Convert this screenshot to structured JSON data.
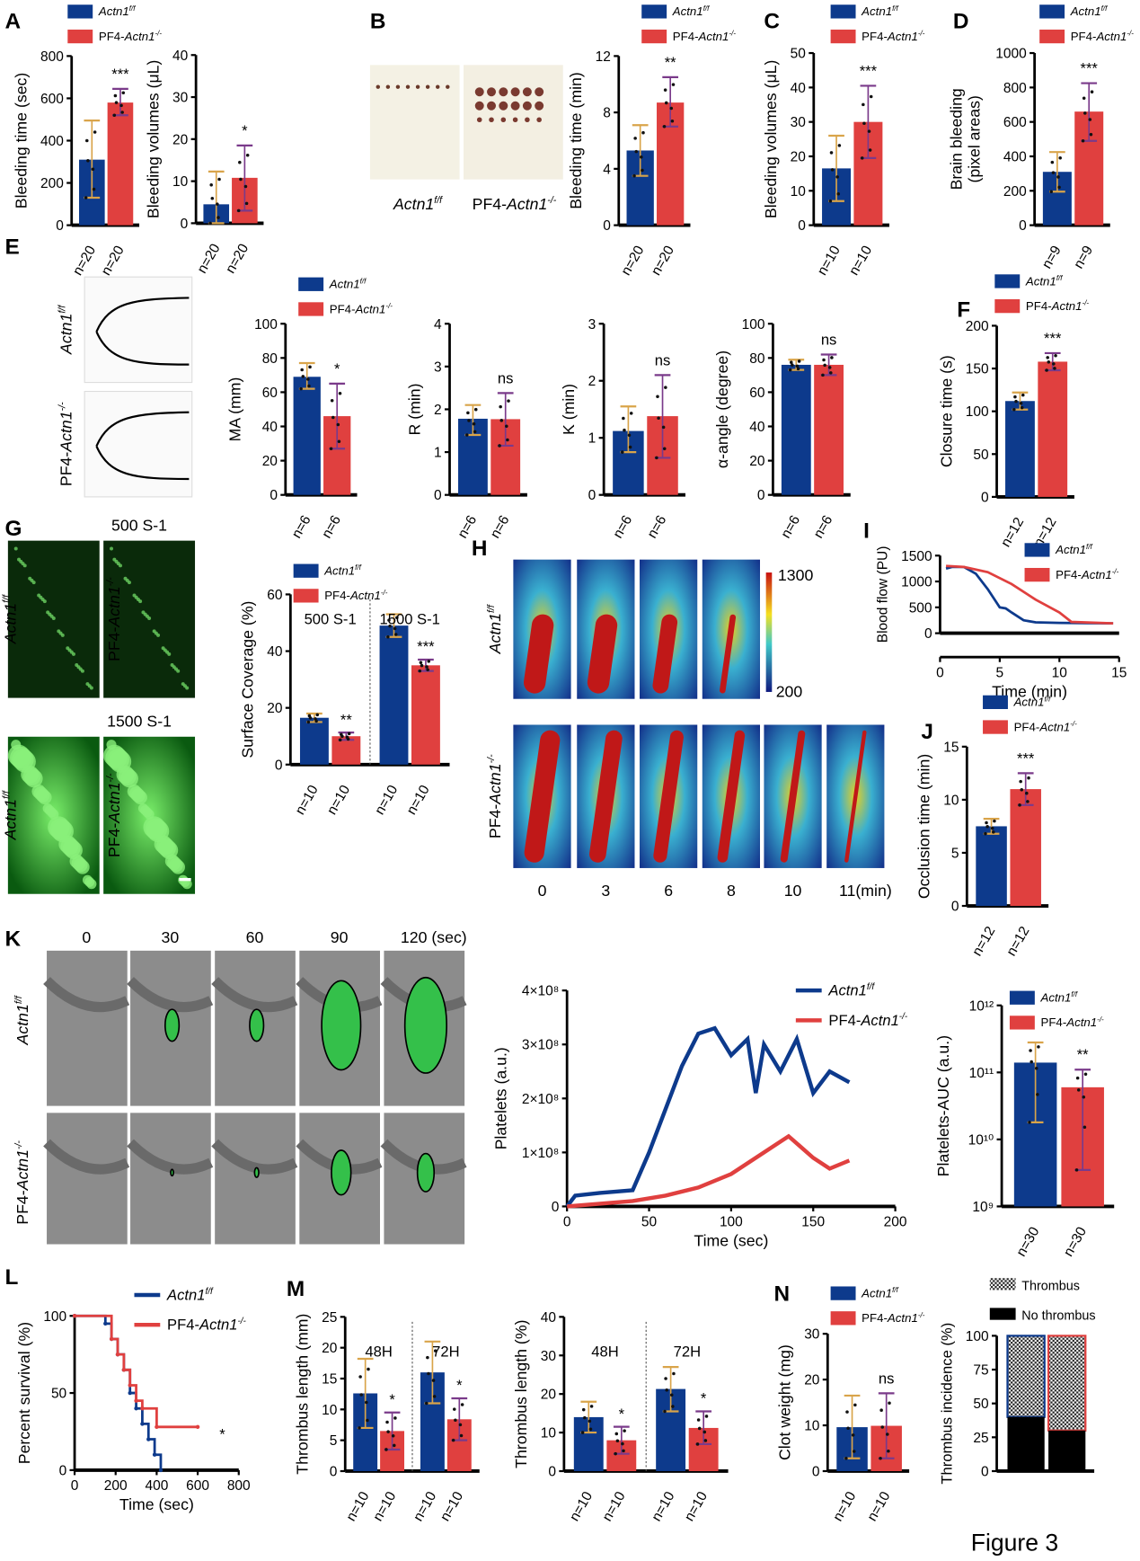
{
  "colors": {
    "actn": "#0d3a8c",
    "pf4": "#e0403f",
    "err_actn": "#d9a44a",
    "err_pf4": "#7a3a8a"
  },
  "legend": {
    "actn": {
      "base": "Actn1",
      "sup": "f/f"
    },
    "pf4": {
      "pre": "PF4-",
      "base": "Actn1",
      "sup": "-/-"
    }
  },
  "panel_letters": [
    "A",
    "B",
    "C",
    "D",
    "E",
    "F",
    "G",
    "H",
    "I",
    "J",
    "K",
    "L",
    "M",
    "N"
  ],
  "images": {
    "B_labels": [
      "Actn1f/f",
      "PF4-Actn1-/-"
    ],
    "E_rows": [
      "Actn1f/f",
      "PF4-Actn1-/-"
    ],
    "G_shear": [
      "500 S-1",
      "1500 S-1"
    ],
    "G_cols": [
      "Actn1f/f",
      "PF4-Actn1-/-"
    ],
    "H_rows": [
      "Actn1f/f",
      "PF4-Actn1-/-"
    ],
    "H_times": [
      "0",
      "3",
      "6",
      "8",
      "10",
      "11(min)"
    ],
    "H_colorbar": [
      "1300",
      "200"
    ],
    "K_rows": [
      "Actn1f/f",
      "PF4-Actn1-/-"
    ],
    "K_times": [
      "0",
      "30",
      "60",
      "90",
      "120 (sec)"
    ]
  },
  "figure_label": "Figure 3",
  "chart_data": [
    {
      "id": "A1",
      "type": "bar",
      "ylabel": "Bleeding time (sec)",
      "ylim": [
        0,
        800
      ],
      "yticks": [
        0,
        200,
        400,
        600,
        800
      ],
      "sig": "***",
      "bars": [
        {
          "s": "actn",
          "value": 310,
          "err": [
            130,
            495
          ],
          "n": "n=20"
        },
        {
          "s": "pf4",
          "value": 580,
          "err": [
            520,
            645
          ],
          "n": "n=20"
        }
      ]
    },
    {
      "id": "A2",
      "type": "bar",
      "ylabel": "Bleeding volumes (μL)",
      "ylim": [
        0,
        40
      ],
      "yticks": [
        0,
        10,
        20,
        30,
        40
      ],
      "sig": "*",
      "bars": [
        {
          "s": "actn",
          "value": 4.5,
          "err": [
            0,
            12.3
          ],
          "n": "n=20"
        },
        {
          "s": "pf4",
          "value": 10.8,
          "err": [
            3,
            18.5
          ],
          "n": "n=20"
        }
      ]
    },
    {
      "id": "B",
      "type": "bar",
      "ylabel": "Bleeding time (min)",
      "ylim": [
        0,
        12
      ],
      "yticks": [
        0,
        4,
        8,
        12
      ],
      "sig": "**",
      "bars": [
        {
          "s": "actn",
          "value": 5.3,
          "err": [
            3.5,
            7.1
          ],
          "n": "n=20"
        },
        {
          "s": "pf4",
          "value": 8.7,
          "err": [
            7,
            10.5
          ],
          "n": "n=20"
        }
      ]
    },
    {
      "id": "C",
      "type": "bar",
      "ylabel": "Bleeding volumes (μL)",
      "ylim": [
        0,
        50
      ],
      "yticks": [
        0,
        10,
        20,
        30,
        40,
        50
      ],
      "sig": "***",
      "bars": [
        {
          "s": "actn",
          "value": 16.5,
          "err": [
            7,
            26
          ],
          "n": "n=10"
        },
        {
          "s": "pf4",
          "value": 30,
          "err": [
            19.5,
            40.5
          ],
          "n": "n=10"
        }
      ]
    },
    {
      "id": "D",
      "type": "bar",
      "ylabel": "Brain bleeding",
      "ylabel2": "(pixel areas)",
      "ylim": [
        0,
        1000
      ],
      "yticks": [
        0,
        200,
        400,
        600,
        800,
        1000
      ],
      "sig": "***",
      "bars": [
        {
          "s": "actn",
          "value": 310,
          "err": [
            195,
            425
          ],
          "n": "n=9"
        },
        {
          "s": "pf4",
          "value": 660,
          "err": [
            490,
            825
          ],
          "n": "n=9"
        }
      ]
    },
    {
      "id": "E_MA",
      "type": "bar",
      "ylabel": "MA (mm)",
      "ylim": [
        0,
        100
      ],
      "yticks": [
        0,
        20,
        40,
        60,
        80,
        100
      ],
      "sig": "*",
      "bars": [
        {
          "s": "actn",
          "value": 69,
          "err": [
            62,
            77
          ],
          "n": "n=6"
        },
        {
          "s": "pf4",
          "value": 46,
          "err": [
            27,
            65
          ],
          "n": "n=6"
        }
      ]
    },
    {
      "id": "E_R",
      "type": "bar",
      "ylabel": "R (min)",
      "ylim": [
        0,
        4
      ],
      "yticks": [
        0,
        1,
        2,
        3,
        4
      ],
      "sig": "ns",
      "bars": [
        {
          "s": "actn",
          "value": 1.78,
          "err": [
            1.4,
            2.1
          ],
          "n": "n=6"
        },
        {
          "s": "pf4",
          "value": 1.77,
          "err": [
            1.15,
            2.38
          ],
          "n": "n=6"
        }
      ]
    },
    {
      "id": "E_K",
      "type": "bar",
      "ylabel": "K (min)",
      "ylim": [
        0,
        3
      ],
      "yticks": [
        0,
        1,
        2,
        3
      ],
      "sig": "ns",
      "bars": [
        {
          "s": "actn",
          "value": 1.12,
          "err": [
            0.75,
            1.55
          ],
          "n": "n=6"
        },
        {
          "s": "pf4",
          "value": 1.38,
          "err": [
            0.65,
            2.1
          ],
          "n": "n=6"
        }
      ]
    },
    {
      "id": "E_A",
      "type": "bar",
      "ylabel": "α-angle (degree)",
      "ylim": [
        0,
        100
      ],
      "yticks": [
        0,
        20,
        40,
        60,
        80,
        100
      ],
      "sig": "ns",
      "bars": [
        {
          "s": "actn",
          "value": 76,
          "err": [
            73,
            79
          ],
          "n": "n=6"
        },
        {
          "s": "pf4",
          "value": 76,
          "err": [
            70,
            82
          ],
          "n": "n=6"
        }
      ]
    },
    {
      "id": "F",
      "type": "bar",
      "ylabel": "Closure time (s)",
      "ylim": [
        0,
        200
      ],
      "yticks": [
        0,
        50,
        100,
        150,
        200
      ],
      "sig": "***",
      "bars": [
        {
          "s": "actn",
          "value": 112,
          "err": [
            102,
            122
          ],
          "n": "n=12"
        },
        {
          "s": "pf4",
          "value": 158,
          "err": [
            148,
            168
          ],
          "n": "n=12"
        }
      ]
    },
    {
      "id": "G",
      "type": "bar",
      "ylabel": "Surface Coverage (%)",
      "ylim": [
        0,
        60
      ],
      "yticks": [
        0,
        20,
        40,
        60
      ],
      "groups": [
        "500 S-1",
        "1500 S-1"
      ],
      "bars": [
        {
          "s": "actn",
          "g": 0,
          "value": 16.5,
          "err": [
            15,
            18
          ],
          "n": "n=10"
        },
        {
          "s": "pf4",
          "g": 0,
          "value": 10,
          "err": [
            8.7,
            11.3
          ],
          "n": "n=10",
          "sig": "**"
        },
        {
          "s": "actn",
          "g": 1,
          "value": 49,
          "err": [
            45,
            53
          ],
          "n": "n=10"
        },
        {
          "s": "pf4",
          "g": 1,
          "value": 35,
          "err": [
            33,
            37
          ],
          "n": "n=10",
          "sig": "***"
        }
      ]
    },
    {
      "id": "I",
      "type": "line",
      "ylabel": "Blood flow (PU)",
      "xlabel": "Time (min)",
      "xlim": [
        0,
        15
      ],
      "ylim": [
        0,
        1500
      ],
      "xticks": [
        0,
        5,
        10,
        15
      ],
      "yticks": [
        0,
        500,
        1000,
        1500
      ],
      "series": [
        {
          "s": "actn",
          "x": [
            0.5,
            1,
            2,
            3,
            4,
            5,
            5.5,
            6,
            7,
            8,
            10,
            14.5
          ],
          "y": [
            1250,
            1280,
            1280,
            1150,
            850,
            500,
            480,
            400,
            250,
            210,
            200,
            190
          ]
        },
        {
          "s": "pf4",
          "x": [
            0.5,
            2,
            4,
            6,
            8,
            10,
            11,
            14.5
          ],
          "y": [
            1300,
            1280,
            1180,
            950,
            650,
            400,
            220,
            190
          ]
        }
      ]
    },
    {
      "id": "J",
      "type": "bar",
      "ylabel": "Occlusion time (min)",
      "ylim": [
        0,
        15
      ],
      "yticks": [
        0,
        5,
        10,
        15
      ],
      "sig": "***",
      "bars": [
        {
          "s": "actn",
          "value": 7.5,
          "err": [
            6.8,
            8.2
          ],
          "n": "n=12"
        },
        {
          "s": "pf4",
          "value": 11,
          "err": [
            9.5,
            12.5
          ],
          "n": "n=12"
        }
      ]
    },
    {
      "id": "K_line",
      "type": "line",
      "ylabel": "Platelets (a.u.)",
      "xlabel": "Time (sec)",
      "xlim": [
        0,
        200
      ],
      "ylim": [
        0,
        400000000
      ],
      "xticks": [
        0,
        50,
        100,
        150,
        200
      ],
      "yticks": [
        0,
        100000000,
        200000000,
        300000000,
        400000000
      ],
      "ytick_labels": [
        "0",
        "1×10⁸",
        "2×10⁸",
        "3×10⁸",
        "4×10⁸"
      ],
      "series": [
        {
          "s": "actn",
          "x": [
            0,
            5,
            20,
            40,
            50,
            60,
            70,
            80,
            90,
            100,
            110,
            115,
            120,
            130,
            140,
            150,
            160,
            172
          ],
          "y": [
            0,
            20000000,
            25000000,
            30000000,
            100000000,
            180000000,
            260000000,
            320000000,
            330000000,
            280000000,
            310000000,
            210000000,
            300000000,
            250000000,
            310000000,
            210000000,
            250000000,
            230000000
          ]
        },
        {
          "s": "pf4",
          "x": [
            0,
            20,
            40,
            60,
            80,
            100,
            120,
            135,
            150,
            160,
            172
          ],
          "y": [
            0,
            5000000,
            10000000,
            20000000,
            35000000,
            60000000,
            100000000,
            130000000,
            90000000,
            70000000,
            85000000
          ]
        }
      ]
    },
    {
      "id": "K_auc",
      "type": "bar",
      "yscale": "log",
      "ylabel": "Platelets-AUC (a.u.)",
      "ylim": [
        1000000000,
        1000000000000
      ],
      "yticks": [
        1000000000,
        10000000000,
        100000000000,
        1000000000000
      ],
      "ytick_labels": [
        "10⁹",
        "10¹⁰",
        "10¹¹",
        "10¹²"
      ],
      "sig": "**",
      "bars": [
        {
          "s": "actn",
          "value": 140000000000,
          "err": [
            18000000000,
            280000000000
          ],
          "n": "n=30"
        },
        {
          "s": "pf4",
          "value": 60000000000,
          "err": [
            3500000000,
            110000000000
          ],
          "n": "n=30"
        }
      ]
    },
    {
      "id": "L",
      "type": "line",
      "step": true,
      "ylabel": "Percent survival (%)",
      "xlabel": "Time (sec)",
      "xlim": [
        0,
        800
      ],
      "ylim": [
        0,
        100
      ],
      "xticks": [
        0,
        200,
        400,
        600,
        800
      ],
      "yticks": [
        0,
        50,
        100
      ],
      "sig": "*",
      "series": [
        {
          "s": "actn",
          "x": [
            0,
            150,
            180,
            210,
            240,
            270,
            300,
            330,
            360,
            390,
            420
          ],
          "y": [
            100,
            95,
            85,
            75,
            65,
            50,
            40,
            30,
            20,
            10,
            0
          ]
        },
        {
          "s": "pf4",
          "x": [
            0,
            180,
            210,
            240,
            270,
            300,
            330,
            400,
            600
          ],
          "y": [
            100,
            85,
            75,
            65,
            55,
            45,
            40,
            28,
            28
          ]
        }
      ]
    },
    {
      "id": "M1",
      "type": "bar",
      "ylabel": "Thrombus length (mm)",
      "ylim": [
        0,
        25
      ],
      "yticks": [
        0,
        5,
        10,
        15,
        20,
        25
      ],
      "groups": [
        "48H",
        "72H"
      ],
      "bars": [
        {
          "s": "actn",
          "g": 0,
          "value": 12.6,
          "err": [
            7,
            18.2
          ],
          "n": "n=10"
        },
        {
          "s": "pf4",
          "g": 0,
          "value": 6.5,
          "err": [
            3.5,
            9.5
          ],
          "n": "n=10",
          "sig": "*"
        },
        {
          "s": "actn",
          "g": 1,
          "value": 16,
          "err": [
            11,
            21
          ],
          "n": "n=10"
        },
        {
          "s": "pf4",
          "g": 1,
          "value": 8.4,
          "err": [
            5,
            11.8
          ],
          "n": "n=10",
          "sig": "*"
        }
      ]
    },
    {
      "id": "M2",
      "type": "bar",
      "ylabel": "Thrombus length (%)",
      "ylim": [
        0,
        40
      ],
      "yticks": [
        0,
        10,
        20,
        30,
        40
      ],
      "groups": [
        "48H",
        "72H"
      ],
      "bars": [
        {
          "s": "actn",
          "g": 0,
          "value": 14,
          "err": [
            10,
            18
          ],
          "n": "n=10"
        },
        {
          "s": "pf4",
          "g": 0,
          "value": 8,
          "err": [
            4.5,
            11.5
          ],
          "n": "n=10",
          "sig": "*"
        },
        {
          "s": "actn",
          "g": 1,
          "value": 21.3,
          "err": [
            15.5,
            27
          ],
          "n": "n=10"
        },
        {
          "s": "pf4",
          "g": 1,
          "value": 11.2,
          "err": [
            7,
            15.5
          ],
          "n": "n=10",
          "sig": "*"
        }
      ]
    },
    {
      "id": "N1",
      "type": "bar",
      "ylabel": "Clot weight (mg)",
      "ylim": [
        0,
        30
      ],
      "yticks": [
        0,
        10,
        20,
        30
      ],
      "sig": "ns",
      "bars": [
        {
          "s": "actn",
          "value": 9.6,
          "err": [
            2.8,
            16.5
          ],
          "n": "n=10"
        },
        {
          "s": "pf4",
          "value": 9.9,
          "err": [
            2.8,
            17
          ],
          "n": "n=10"
        }
      ]
    },
    {
      "id": "N2",
      "type": "stacked_bar",
      "ylabel": "Thrombus incidence (%)",
      "ylim": [
        0,
        100
      ],
      "yticks": [
        0,
        25,
        50,
        75,
        100
      ],
      "legend": [
        "Thrombus",
        "No thrombus"
      ],
      "bars": [
        {
          "s": "actn",
          "no_thrombus": 40,
          "thrombus": 60
        },
        {
          "s": "pf4",
          "no_thrombus": 30,
          "thrombus": 70
        }
      ]
    }
  ]
}
